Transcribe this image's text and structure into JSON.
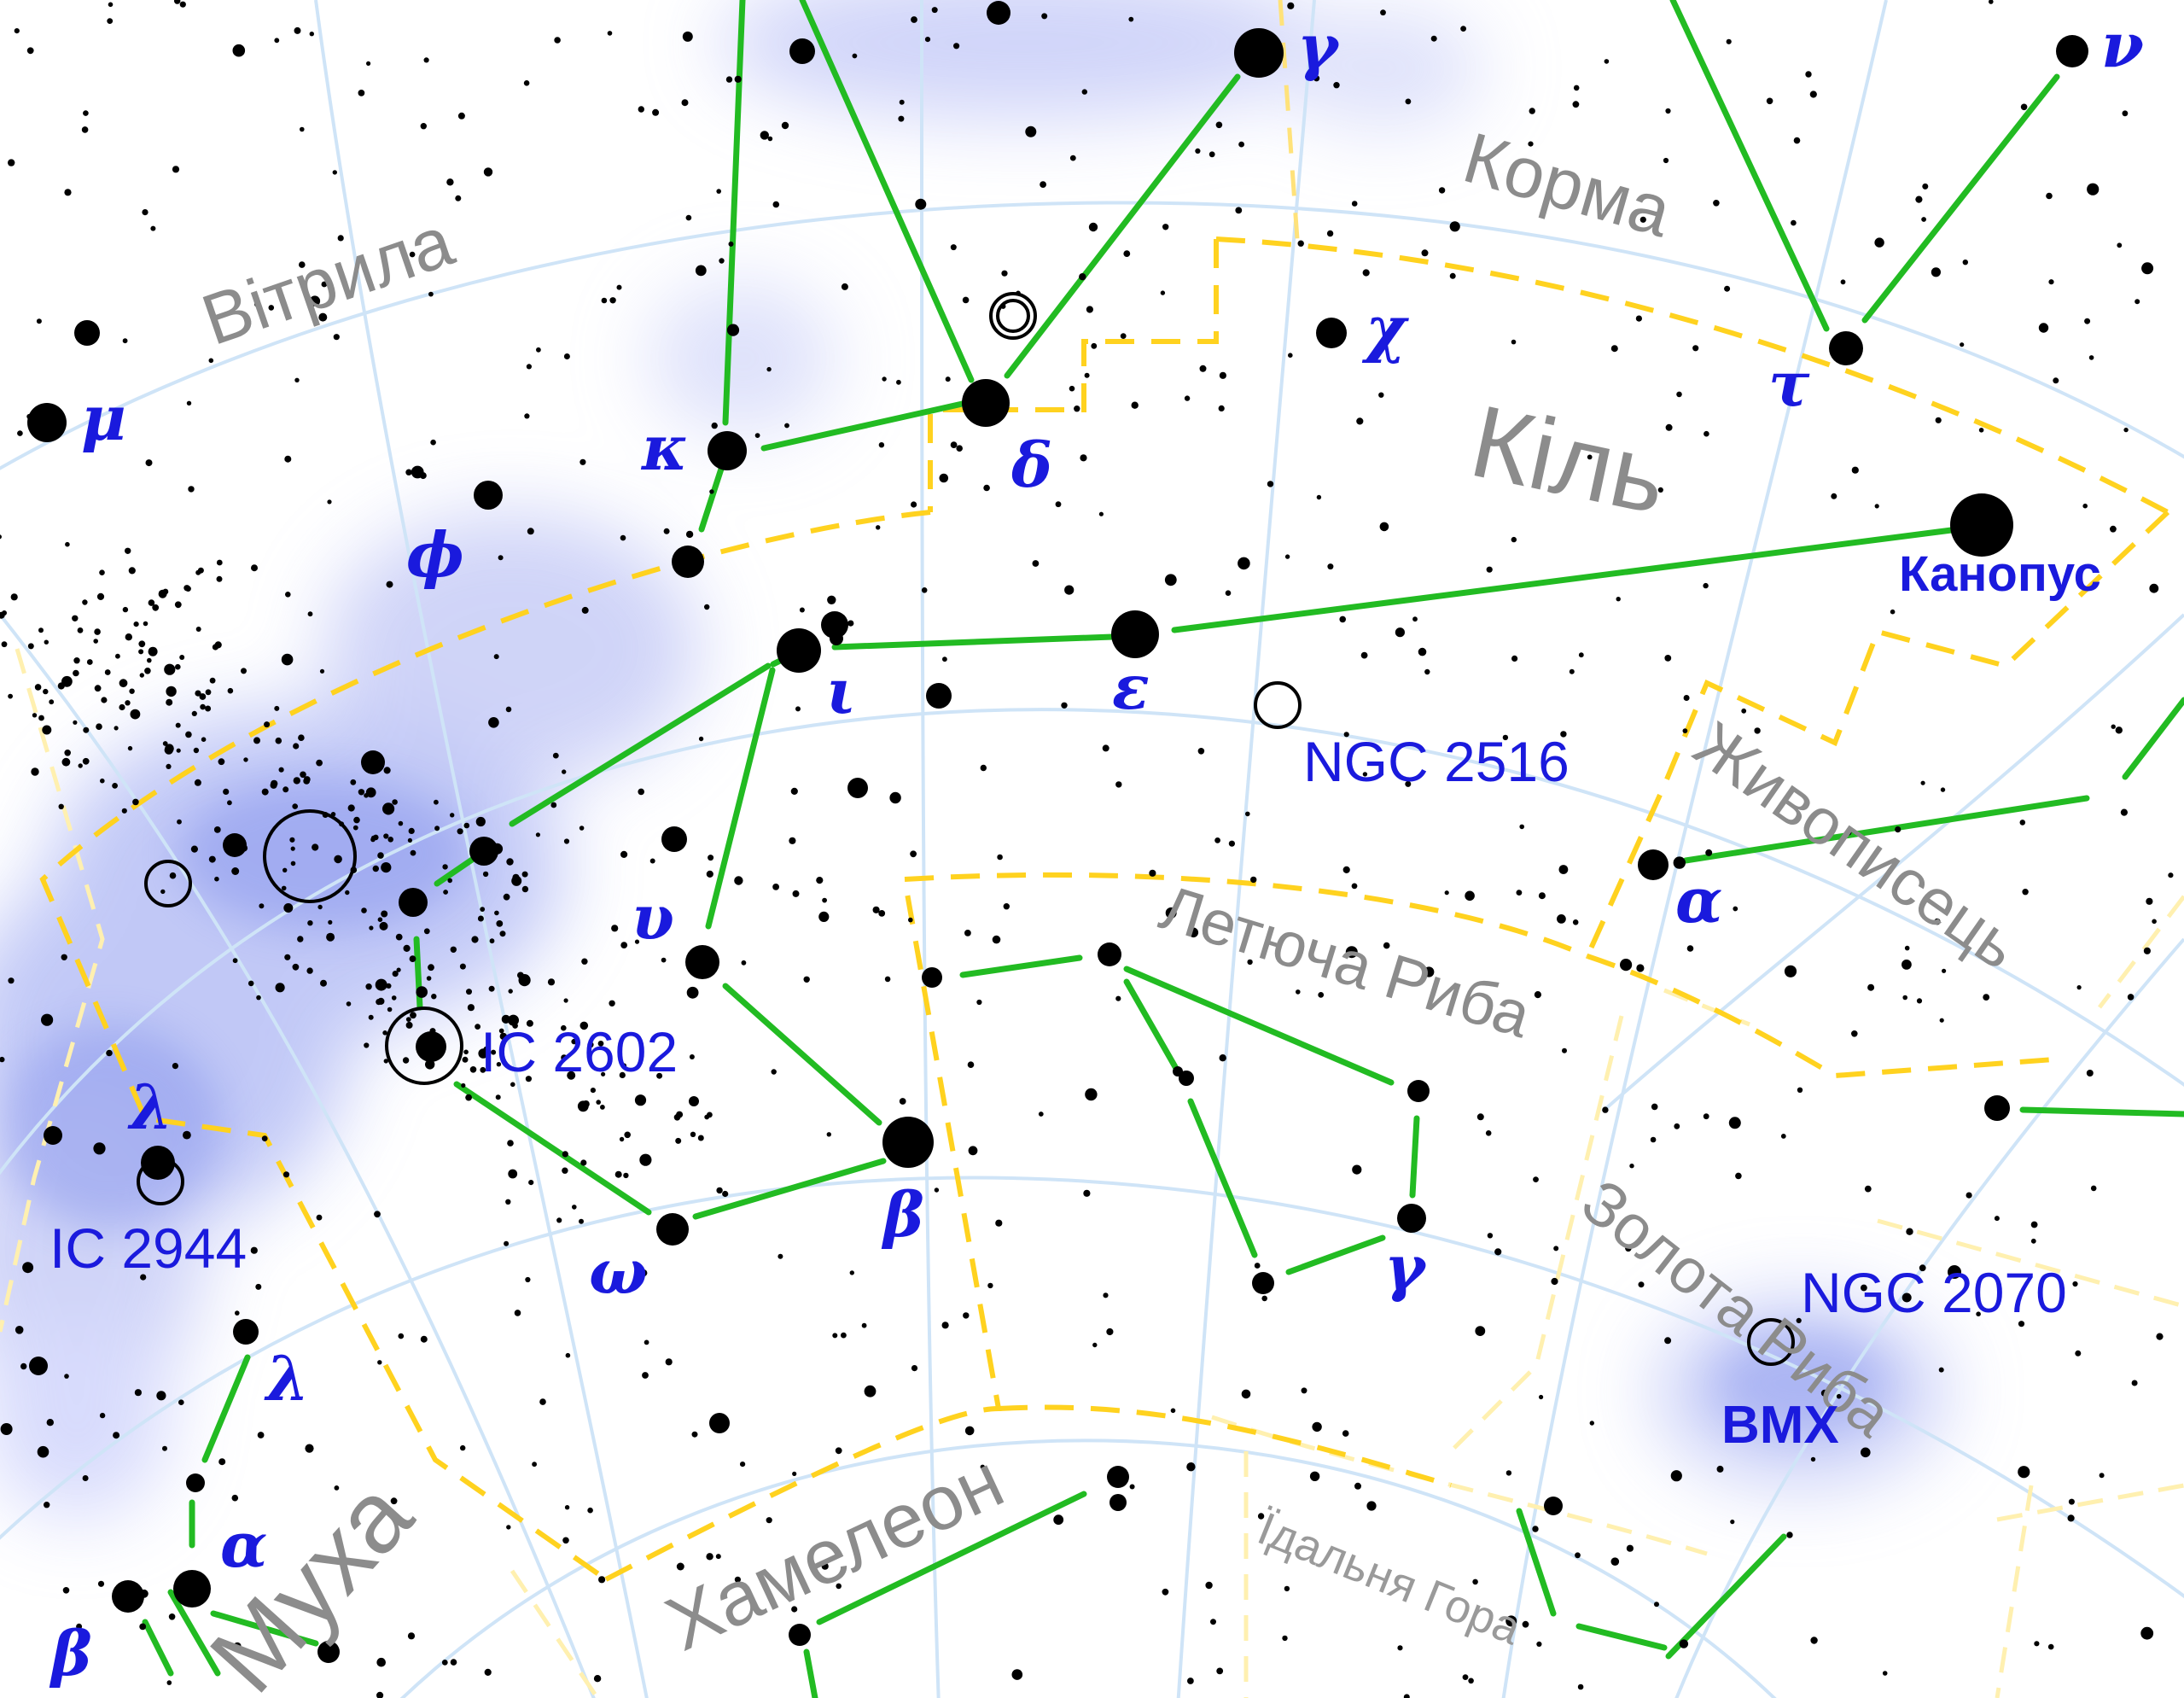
{
  "constellations": {
    "carina": "Кіль",
    "vela": "Вітрила",
    "puppis": "Корма",
    "pictor": "Живописець",
    "volans": "Летюча Риба",
    "dorado": "Золота Риба",
    "chamaeleon": "Хамелеон",
    "musca": "Муха",
    "mensa": "Їдальня Гора"
  },
  "star_labels": {
    "mu": "μ",
    "kappa": "κ",
    "phi": "ϕ",
    "delta": "δ",
    "gamma_top": "γ",
    "chi": "χ",
    "tau": "τ",
    "nu": "ν",
    "iota": "ι",
    "epsilon": "ε",
    "canopus": "Канопус",
    "alpha_pictor": "α",
    "upsilon": "υ",
    "beta": "β",
    "omega": "ω",
    "gamma_volans": "γ",
    "lambda_left": "λ",
    "lambda_musca": "λ",
    "alpha_musca": "α",
    "beta_musca": "β"
  },
  "objects": {
    "ngc2516": "NGC 2516",
    "ic2602": "IC 2602",
    "ic2944": "IC 2944",
    "ngc2070": "NGC 2070",
    "lmc": "ВМХ"
  },
  "colors": {
    "milky_way": "#8f9cf0",
    "grid": "#cfe4f7",
    "boundary": "#ffd21f",
    "boundary_faint": "#fff0b0",
    "lines": "#22bb22",
    "star": "#000000",
    "greek_label": "#1a1add",
    "constellation_name": "#8c8c8c"
  }
}
